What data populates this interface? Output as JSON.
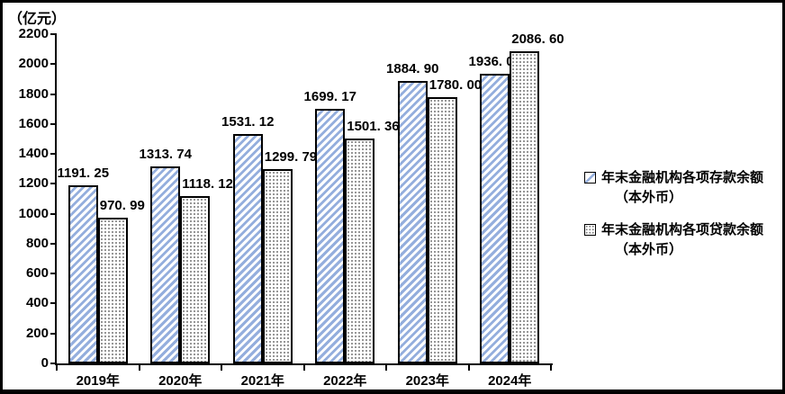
{
  "unit_label": "（亿元）",
  "chart_data": {
    "type": "bar",
    "categories": [
      "2019年",
      "2020年",
      "2021年",
      "2022年",
      "2023年",
      "2024年"
    ],
    "series": [
      {
        "name": "年末金融机构各项存款余额（本外币）",
        "values": [
          1191.25,
          1313.74,
          1531.12,
          1699.17,
          1884.9,
          1936.0
        ],
        "labels": [
          "1191. 25",
          "1313. 74",
          "1531. 12",
          "1699. 17",
          "1884. 90",
          "1936. 00"
        ],
        "pattern": "diagonal-hatch",
        "color": "#94aedd"
      },
      {
        "name": "年末金融机构各项贷款余额（本外币）",
        "values": [
          970.99,
          1118.12,
          1299.79,
          1501.36,
          1780.0,
          2086.6
        ],
        "labels": [
          "970. 99",
          "1118. 12",
          "1299. 79",
          "1501. 36",
          "1780. 00",
          "2086. 60"
        ],
        "pattern": "dots",
        "color": "#7d7d7d"
      }
    ],
    "title": "",
    "xlabel": "",
    "ylabel": "（亿元）",
    "ylim": [
      0,
      2200
    ],
    "ytick_step": 200,
    "grid": false,
    "legend_position": "right"
  },
  "legend": {
    "items": [
      {
        "line1": "年末金融机构各项存款余额",
        "line2": "（本外币）",
        "marker": "diagonal-hatch"
      },
      {
        "line1": "年末金融机构各项贷款余额",
        "line2": "（本外币）",
        "marker": "dots"
      }
    ]
  }
}
